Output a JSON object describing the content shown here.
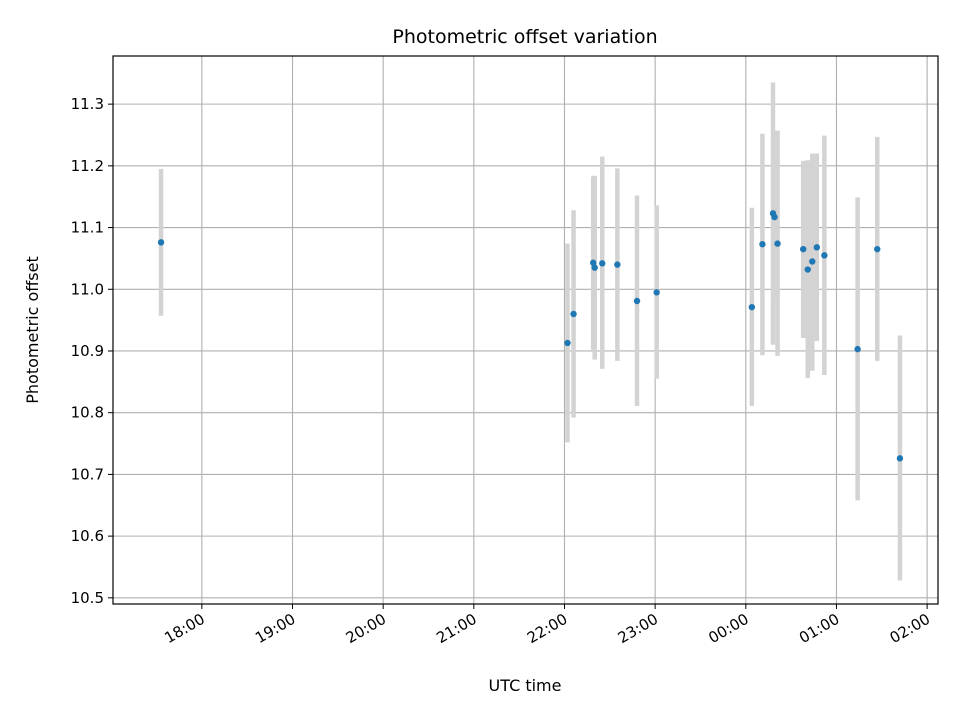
{
  "chart_data": {
    "type": "scatter",
    "title": "Photometric offset variation",
    "xlabel": "UTC time",
    "ylabel": "Photometric offset",
    "grid": true,
    "legend": "none",
    "x_start": "17:00",
    "x_end": "26:00",
    "xlim": [
      "17:00",
      "26:00"
    ],
    "xlim_hours": [
      17.02,
      26.12
    ],
    "ylim": [
      10.49,
      11.378
    ],
    "x_ticks": [
      {
        "label": "18:00",
        "hour": 18
      },
      {
        "label": "19:00",
        "hour": 19
      },
      {
        "label": "20:00",
        "hour": 20
      },
      {
        "label": "21:00",
        "hour": 21
      },
      {
        "label": "22:00",
        "hour": 22
      },
      {
        "label": "23:00",
        "hour": 23
      },
      {
        "label": "00:00",
        "hour": 24
      },
      {
        "label": "01:00",
        "hour": 25
      },
      {
        "label": "02:00",
        "hour": 26
      }
    ],
    "y_ticks": [
      "10.5",
      "10.6",
      "10.7",
      "10.8",
      "10.9",
      "11.0",
      "11.1",
      "11.2",
      "11.3"
    ],
    "colors": {
      "point": "#1f77b4",
      "errorbar": "#d3d3d3",
      "grid": "#b0b0b0",
      "axes": "#000000"
    },
    "points": [
      {
        "time": "17:33",
        "y": 11.076,
        "ylow": 10.957,
        "yhigh": 11.195
      },
      {
        "time": "22:02",
        "y": 10.913,
        "ylow": 10.752,
        "yhigh": 11.074
      },
      {
        "time": "22:06",
        "y": 10.96,
        "ylow": 10.792,
        "yhigh": 11.128
      },
      {
        "time": "22:19",
        "y": 11.043,
        "ylow": 10.902,
        "yhigh": 11.183
      },
      {
        "time": "22:20",
        "y": 11.035,
        "ylow": 10.886,
        "yhigh": 11.184
      },
      {
        "time": "22:25",
        "y": 11.042,
        "ylow": 10.871,
        "yhigh": 11.215
      },
      {
        "time": "22:35",
        "y": 11.04,
        "ylow": 10.884,
        "yhigh": 11.196
      },
      {
        "time": "22:48",
        "y": 10.981,
        "ylow": 10.811,
        "yhigh": 11.152
      },
      {
        "time": "23:01",
        "y": 10.995,
        "ylow": 10.855,
        "yhigh": 11.136
      },
      {
        "time": "00:04",
        "y": 10.971,
        "ylow": 10.811,
        "yhigh": 11.132
      },
      {
        "time": "00:11",
        "y": 11.073,
        "ylow": 10.893,
        "yhigh": 11.252
      },
      {
        "time": "00:18",
        "y": 11.123,
        "ylow": 10.91,
        "yhigh": 11.335
      },
      {
        "time": "00:19",
        "y": 11.117,
        "ylow": 10.98,
        "yhigh": 11.256
      },
      {
        "time": "00:21",
        "y": 11.074,
        "ylow": 10.892,
        "yhigh": 11.257
      },
      {
        "time": "00:38",
        "y": 11.065,
        "ylow": 10.921,
        "yhigh": 11.208
      },
      {
        "time": "00:41",
        "y": 11.032,
        "ylow": 10.856,
        "yhigh": 11.209
      },
      {
        "time": "00:44",
        "y": 11.045,
        "ylow": 10.868,
        "yhigh": 11.22
      },
      {
        "time": "00:47",
        "y": 11.068,
        "ylow": 10.916,
        "yhigh": 11.22
      },
      {
        "time": "00:52",
        "y": 11.055,
        "ylow": 10.861,
        "yhigh": 11.249
      },
      {
        "time": "01:14",
        "y": 10.903,
        "ylow": 10.658,
        "yhigh": 11.149
      },
      {
        "time": "01:27",
        "y": 11.065,
        "ylow": 10.884,
        "yhigh": 11.247
      },
      {
        "time": "01:42",
        "y": 10.726,
        "ylow": 10.528,
        "yhigh": 10.925
      }
    ]
  }
}
